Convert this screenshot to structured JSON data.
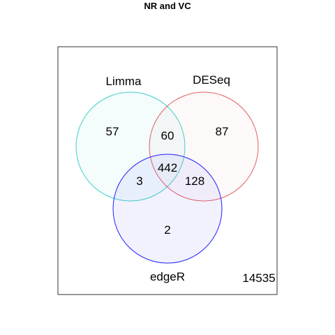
{
  "title": "NR and VC",
  "sets": [
    {
      "key": "limma",
      "label": "Limma",
      "stroke": "#40d0c8",
      "fill": "#40d0c8"
    },
    {
      "key": "deseq",
      "label": "DESeq",
      "stroke": "#e06060",
      "fill": "#f0a0a0"
    },
    {
      "key": "edger",
      "label": "edgeR",
      "stroke": "#2020ff",
      "fill": "#8080ff"
    }
  ],
  "counts": {
    "limma_only": "57",
    "deseq_only": "87",
    "edger_only": "2",
    "limma_deseq": "60",
    "limma_edger": "3",
    "deseq_edger": "128",
    "all_three": "442",
    "outside": "14535"
  }
}
